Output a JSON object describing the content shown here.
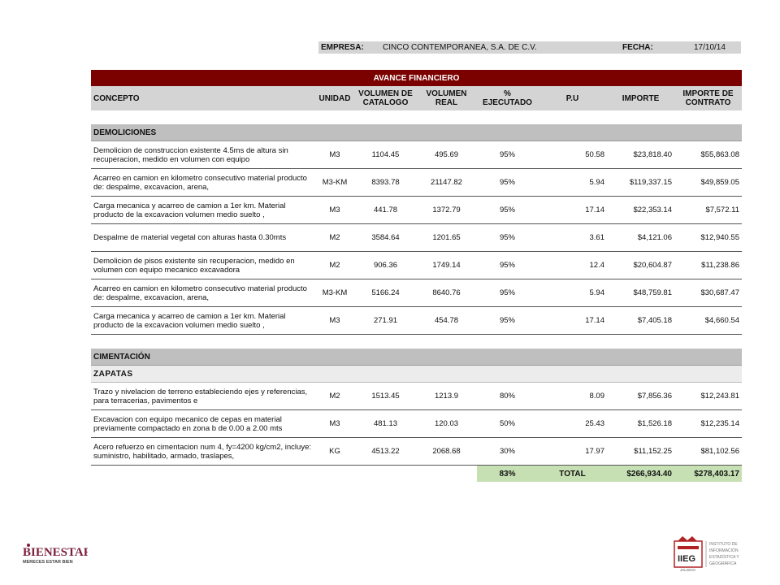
{
  "header": {
    "empresa_label": "EMPRESA:",
    "empresa_value": "CINCO CONTEMPORANEA, S.A. DE C.V.",
    "fecha_label": "FECHA:",
    "fecha_value": "17/10/14"
  },
  "table": {
    "title": "AVANCE FINANCIERO",
    "columns": [
      "CONCEPTO",
      "UNIDAD",
      "VOLUMEN DE CATALOGO",
      "VOLUMEN REAL",
      "% EJECUTADO",
      "P.U",
      "IMPORTE",
      "IMPORTE DE CONTRATO"
    ],
    "sections": [
      {
        "name": "DEMOLICIONES",
        "rows": [
          {
            "concepto": "Demolicion de construccion existente 4.5ms de altura sin recuperacion, medido en volumen con equipo",
            "unidad": "M3",
            "vol_catalogo": "1104.45",
            "vol_real": "495.69",
            "ejecutado": "95%",
            "pu": "50.58",
            "importe": "$23,818.40",
            "importe_contrato": "$55,863.08"
          },
          {
            "concepto": "Acarreo en camion en kilometro consecutivo material producto de: despalme, excavacion, arena,",
            "unidad": "M3-KM",
            "vol_catalogo": "8393.78",
            "vol_real": "21147.82",
            "ejecutado": "95%",
            "pu": "5.94",
            "importe": "$119,337.15",
            "importe_contrato": "$49,859.05"
          },
          {
            "concepto": "Carga mecanica y acarreo de camion a 1er km. Material producto de la excavacion volumen medio suelto ,",
            "unidad": "M3",
            "vol_catalogo": "441.78",
            "vol_real": "1372.79",
            "ejecutado": "95%",
            "pu": "17.14",
            "importe": "$22,353.14",
            "importe_contrato": "$7,572.11"
          },
          {
            "concepto": "Despalme de material vegetal con alturas hasta 0.30mts",
            "unidad": "M2",
            "vol_catalogo": "3584.64",
            "vol_real": "1201.65",
            "ejecutado": "95%",
            "pu": "3.61",
            "importe": "$4,121.06",
            "importe_contrato": "$12,940.55"
          },
          {
            "concepto": "Demolicion de pisos existente sin recuperacion, medido en volumen con equipo mecanico excavadora",
            "unidad": "M2",
            "vol_catalogo": "906.36",
            "vol_real": "1749.14",
            "ejecutado": "95%",
            "pu": "12.4",
            "importe": "$20,604.87",
            "importe_contrato": "$11,238.86"
          },
          {
            "concepto": "Acarreo en camion en kilometro consecutivo material producto de: despalme, excavacion, arena,",
            "unidad": "M3-KM",
            "vol_catalogo": "5166.24",
            "vol_real": "8640.76",
            "ejecutado": "95%",
            "pu": "5.94",
            "importe": "$48,759.81",
            "importe_contrato": "$30,687.47"
          },
          {
            "concepto": "Carga mecanica y acarreo de camion a 1er km. Material producto de la excavacion volumen medio suelto ,",
            "unidad": "M3",
            "vol_catalogo": "271.91",
            "vol_real": "454.78",
            "ejecutado": "95%",
            "pu": "17.14",
            "importe": "$7,405.18",
            "importe_contrato": "$4,660.54"
          }
        ]
      }
    ],
    "cimentacion": {
      "name": "CIMENTACIÓN",
      "subsection": "ZAPATAS",
      "rows": [
        {
          "concepto": "Trazo y nivelacion de terreno estableciendo ejes y referencias, para terracerias, pavimentos e",
          "unidad": "M2",
          "vol_catalogo": "1513.45",
          "vol_real": "1213.9",
          "ejecutado": "80%",
          "pu": "8.09",
          "importe": "$7,856.36",
          "importe_contrato": "$12,243.81"
        },
        {
          "concepto": "Excavacion con equipo mecanico de cepas en material previamente compactado en zona b de 0.00 a 2.00 mts",
          "unidad": "M3",
          "vol_catalogo": "481.13",
          "vol_real": "120.03",
          "ejecutado": "50%",
          "pu": "25.43",
          "importe": "$1,526.18",
          "importe_contrato": "$12,235.14"
        },
        {
          "concepto": "Acero refuerzo en cimentacion num 4, fy=4200 kg/cm2, incluye: suministro, habilitado, armado, traslapes,",
          "unidad": "KG",
          "vol_catalogo": "4513.22",
          "vol_real": "2068.68",
          "ejecutado": "30%",
          "pu": "17.97",
          "importe": "$11,152.25",
          "importe_contrato": "$81,102.56"
        }
      ]
    },
    "total": {
      "ejecutado": "83%",
      "label": "TOTAL",
      "importe": "$266,934.40",
      "importe_contrato": "$278,403.17"
    }
  },
  "logos": {
    "left_text": "BIENESTAR",
    "left_sub": "MERECES ESTAR BIEN",
    "right_text": "IIEG",
    "right_sub": "JALISCO",
    "right_caption": [
      "INSTITUTO DE",
      "INFORMACIÓN",
      "ESTADÍSTICA Y",
      "GEOGRÁFICA"
    ]
  }
}
